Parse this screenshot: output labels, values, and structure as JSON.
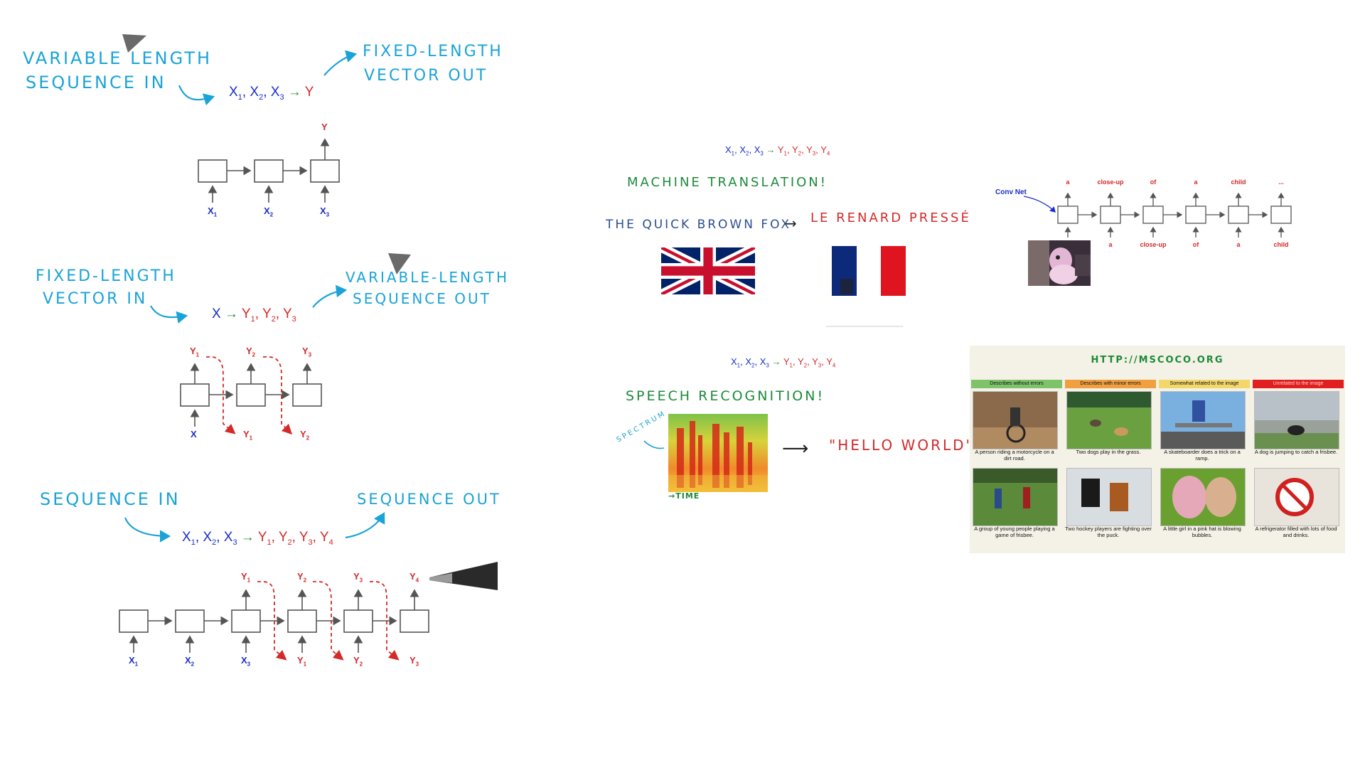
{
  "colors": {
    "handwriting_blue": "#1aa3d8",
    "handwriting_green": "#1c8a3a",
    "handwriting_red": "#d32a2a",
    "x_blue": "#1a2fc8",
    "y_red": "#d32a2a",
    "arrow_green": "#2f8f2f",
    "cell_gray": "#555555",
    "coco_green": "#7ec26a",
    "coco_orange": "#f0a040",
    "coco_yellow": "#f3d76a",
    "coco_red": "#e02020"
  },
  "panel1": {
    "label_in": [
      "VARIABLE LENGTH",
      "SEQUENCE IN"
    ],
    "label_out": [
      "FIXED-LENGTH",
      "VECTOR OUT"
    ],
    "formula": {
      "x": [
        "X",
        "X",
        "X"
      ],
      "x_sub": [
        "1",
        "2",
        "3"
      ],
      "arrow": "→",
      "y": [
        "Y"
      ]
    },
    "diagram": {
      "inputs": [
        "X",
        "X",
        "X"
      ],
      "input_subs": [
        "1",
        "2",
        "3"
      ],
      "output": "Y"
    }
  },
  "panel2": {
    "label_in": [
      "FIXED-LENGTH",
      "VECTOR IN"
    ],
    "label_out": [
      "VARIABLE-LENGTH",
      "SEQUENCE OUT"
    ],
    "formula": {
      "x": [
        "X"
      ],
      "arrow": "→",
      "y": [
        "Y",
        "Y",
        "Y"
      ],
      "y_sub": [
        "1",
        "2",
        "3"
      ]
    },
    "diagram": {
      "input": "X",
      "outputs": [
        "Y",
        "Y",
        "Y"
      ],
      "output_subs": [
        "1",
        "2",
        "3"
      ],
      "feedback": [
        "Y",
        "Y"
      ],
      "feedback_subs": [
        "1",
        "2"
      ]
    }
  },
  "panel3": {
    "label_in": "SEQUENCE IN",
    "label_out": "SEQUENCE OUT",
    "formula": {
      "x": [
        "X",
        "X",
        "X"
      ],
      "x_sub": [
        "1",
        "2",
        "3"
      ],
      "arrow": "→",
      "y": [
        "Y",
        "Y",
        "Y",
        "Y"
      ],
      "y_sub": [
        "1",
        "2",
        "3",
        "4"
      ]
    },
    "diagram": {
      "inputs": [
        "X",
        "X",
        "X"
      ],
      "input_subs": [
        "1",
        "2",
        "3"
      ],
      "outputs": [
        "Y",
        "Y",
        "Y",
        "Y"
      ],
      "output_subs": [
        "1",
        "2",
        "3",
        "4"
      ],
      "feedback": [
        "Y",
        "Y",
        "Y"
      ],
      "feedback_subs": [
        "1",
        "2",
        "3"
      ]
    }
  },
  "translation": {
    "formula": {
      "x": [
        "X",
        "X",
        "X"
      ],
      "x_sub": [
        "1",
        "2",
        "3"
      ],
      "arrow": "→",
      "y": [
        "Y",
        "Y",
        "Y",
        "Y"
      ],
      "y_sub": [
        "1",
        "2",
        "3",
        "4"
      ]
    },
    "title": "MACHINE TRANSLATION!",
    "source": "THE QUICK BROWN FOX",
    "arrow": "→",
    "target": "LE RENARD PRESSÉ",
    "flags": [
      "uk-flag-icon",
      "france-flag-icon"
    ]
  },
  "captioning": {
    "conv_net": "Conv Net",
    "outputs": [
      "a",
      "close-up",
      "of",
      "a",
      "child",
      "..."
    ],
    "inputs": [
      "a",
      "close-up",
      "of",
      "a",
      "child"
    ]
  },
  "speech": {
    "formula": {
      "x": [
        "X",
        "X",
        "X"
      ],
      "x_sub": [
        "1",
        "2",
        "3"
      ],
      "arrow": "→",
      "y": [
        "Y",
        "Y",
        "Y",
        "Y"
      ],
      "y_sub": [
        "1",
        "2",
        "3",
        "4"
      ]
    },
    "title": "SPEECH RECOGNITION!",
    "spectrum_label": "SPECTRUM",
    "time_label": "→TIME",
    "arrow": "⟶",
    "result": "\"HELLO WORLD\""
  },
  "coco": {
    "url": "HTTP://MSCOCO.ORG",
    "categories": [
      "Describes without errors",
      "Describes with minor errors",
      "Somewhat related to the image",
      "Unrelated to the image"
    ],
    "captions_row1": [
      "A person riding a motorcycle on a dirt road.",
      "Two dogs play in the grass.",
      "A skateboarder does a trick on a ramp.",
      "A dog is jumping to catch a frisbee."
    ],
    "captions_row2": [
      "A group of young people playing a game of frisbee.",
      "Two hockey players are fighting over the puck.",
      "A little girl in a pink hat is blowing bubbles.",
      "A refrigerator filled with lots of food and drinks."
    ]
  }
}
